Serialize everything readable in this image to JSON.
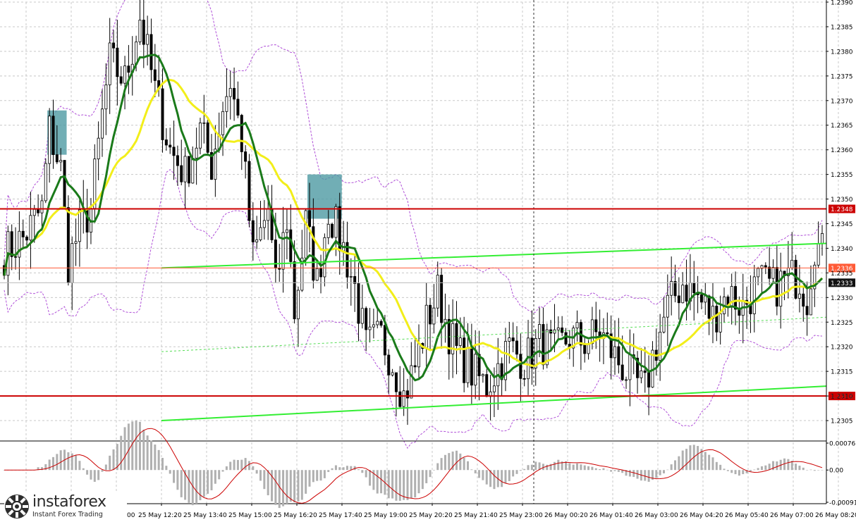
{
  "chart_data": {
    "type": "candlestick",
    "instrument_timeframe": "",
    "x_tick_labels": [
      "25 May 12:20",
      "25 May 13:40",
      "25 May 15:00",
      "25 May 16:20",
      "25 May 17:40",
      "25 May 19:00",
      "25 May 20:20",
      "25 May 21:40",
      "25 May 23:00",
      "26 May 00:20",
      "26 May 01:40",
      "26 May 03:00",
      "26 May 04:20",
      "26 May 05:40",
      "26 May 07:00",
      "26 May 08:20"
    ],
    "first_x_label_fragment": "00",
    "y_tick_labels": [
      "1.2390",
      "1.2385",
      "1.2380",
      "1.2375",
      "1.2370",
      "1.2365",
      "1.2360",
      "1.2355",
      "1.2350",
      "1.2345",
      "1.2340",
      "1.2335",
      "1.2330",
      "1.2325",
      "1.2320",
      "1.2315",
      "1.2310",
      "1.2305"
    ],
    "ylim": [
      1.2301,
      1.239
    ],
    "horizontal_levels": [
      {
        "value": 1.2348,
        "label": "1.2348",
        "color": "#cc0000"
      },
      {
        "value": 1.231,
        "label": "1.2310",
        "color": "#cc0000"
      },
      {
        "value": 1.2336,
        "label": "1.2336",
        "color": "#ff5a36"
      },
      {
        "value": 1.2333,
        "label": "1.2333",
        "color": "#111111"
      }
    ],
    "price_path": [
      [
        0,
        1.2339
      ],
      [
        5,
        1.2342
      ],
      [
        10,
        1.2348
      ],
      [
        12,
        1.2364
      ],
      [
        15,
        1.2356
      ],
      [
        17,
        1.2337
      ],
      [
        20,
        1.2344
      ],
      [
        23,
        1.2348
      ],
      [
        26,
        1.2367
      ],
      [
        28,
        1.2378
      ],
      [
        32,
        1.2374
      ],
      [
        36,
        1.2387
      ],
      [
        40,
        1.2372
      ],
      [
        44,
        1.236
      ],
      [
        48,
        1.2355
      ],
      [
        52,
        1.2364
      ],
      [
        55,
        1.2357
      ],
      [
        58,
        1.2369
      ],
      [
        60,
        1.2374
      ],
      [
        63,
        1.2362
      ],
      [
        66,
        1.2338
      ],
      [
        70,
        1.2348
      ],
      [
        72,
        1.2332
      ],
      [
        75,
        1.2346
      ],
      [
        77,
        1.2327
      ],
      [
        80,
        1.2345
      ],
      [
        83,
        1.2333
      ],
      [
        86,
        1.2348
      ],
      [
        90,
        1.234
      ],
      [
        93,
        1.2332
      ],
      [
        96,
        1.232
      ],
      [
        100,
        1.2322
      ],
      [
        103,
        1.2317
      ],
      [
        106,
        1.231
      ],
      [
        109,
        1.2316
      ],
      [
        112,
        1.2325
      ],
      [
        115,
        1.2331
      ],
      [
        118,
        1.2323
      ],
      [
        120,
        1.2319
      ],
      [
        124,
        1.2315
      ],
      [
        128,
        1.2312
      ],
      [
        131,
        1.2316
      ],
      [
        134,
        1.232
      ],
      [
        138,
        1.2317
      ],
      [
        142,
        1.2321
      ],
      [
        146,
        1.2319
      ],
      [
        150,
        1.2322
      ],
      [
        154,
        1.2321
      ],
      [
        158,
        1.2323
      ],
      [
        162,
        1.2318
      ],
      [
        166,
        1.2314
      ],
      [
        170,
        1.2311
      ],
      [
        172,
        1.2318
      ],
      [
        176,
        1.2328
      ],
      [
        180,
        1.2333
      ],
      [
        184,
        1.233
      ],
      [
        188,
        1.2326
      ],
      [
        192,
        1.2331
      ],
      [
        196,
        1.2328
      ],
      [
        200,
        1.2333
      ],
      [
        204,
        1.2332
      ],
      [
        208,
        1.2334
      ],
      [
        211,
        1.2334
      ],
      [
        213,
        1.233
      ],
      [
        215,
        1.2341
      ],
      [
        217,
        1.2339
      ]
    ],
    "candle_count": 218,
    "moving_averages": [
      {
        "color": "#1a7a1a",
        "role": "fast"
      },
      {
        "color": "#f2ee1a",
        "role": "slow"
      }
    ],
    "envelope_color": "#b050d8",
    "trendlines": [
      {
        "color": "#33ee33",
        "from": [
          "25 May 12:20",
          1.2336
        ],
        "to": [
          "26 May 08:20",
          1.2341
        ]
      },
      {
        "color": "#33ee33",
        "from": [
          "25 May 12:20",
          1.2305
        ],
        "to": [
          "26 May 08:20",
          1.2312
        ]
      },
      {
        "color": "#55dd55",
        "from": [
          "25 May 12:20",
          1.2319
        ],
        "to": [
          "26 May 08:20",
          1.2326
        ],
        "style": "dotted"
      }
    ],
    "highlight_boxes": [
      {
        "candle_from": 12,
        "candle_to": 16,
        "y_from": 1.2368,
        "y_to": 1.2359,
        "color": "#4d9aa3"
      },
      {
        "candle_from": 81,
        "candle_to": 89,
        "y_from": 1.2355,
        "y_to": 1.2346,
        "color": "#4d9aa3"
      }
    ],
    "vertical_marker": {
      "at": "25 May 23:00",
      "style": "dotted"
    },
    "oscillator": {
      "y_tick_labels": [
        "0.00076",
        "0.00",
        "-0.00091"
      ],
      "ylim": [
        -0.00095,
        0.00078
      ],
      "signal_color": "#cc0000",
      "hist_color": "#b0b0b0"
    }
  },
  "brand": {
    "name": "instaforex",
    "tagline": "Instant Forex Trading"
  }
}
